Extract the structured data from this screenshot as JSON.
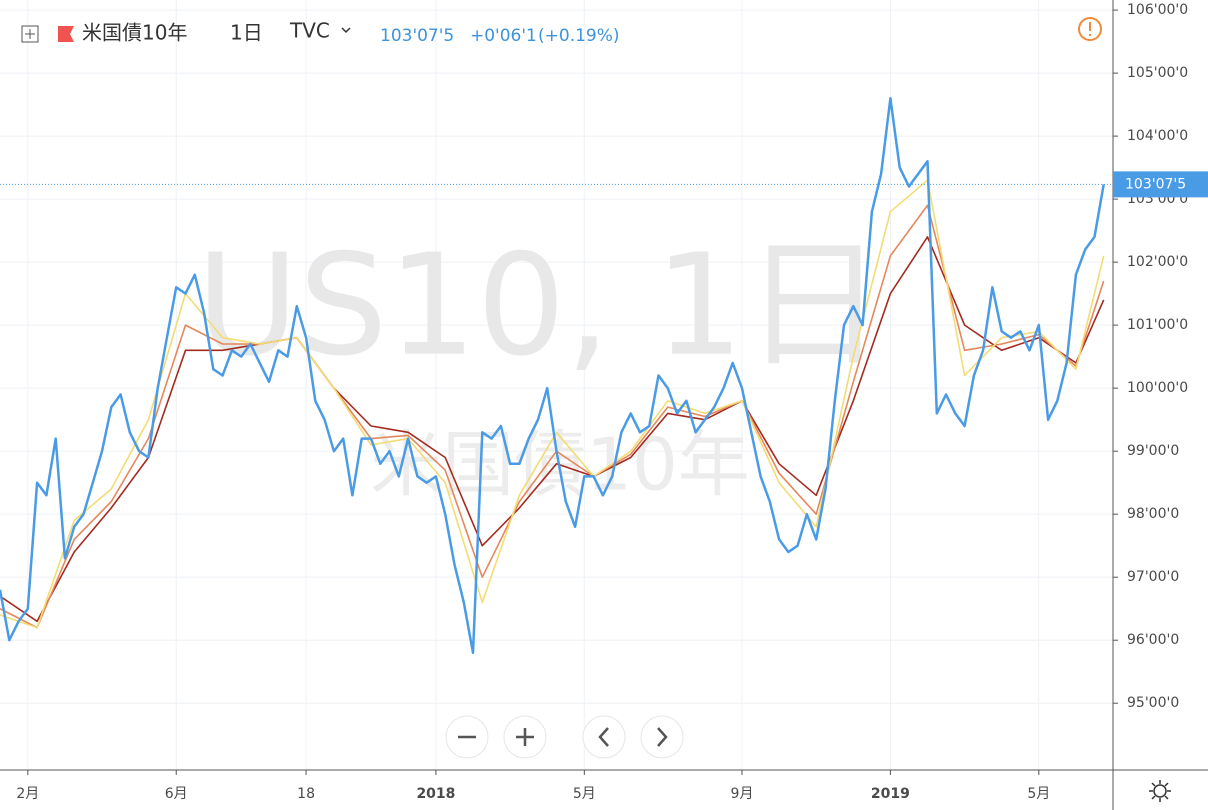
{
  "header": {
    "symbol": "米国債10年",
    "interval": "1日",
    "exchange": "TVC",
    "price": "103'07'5",
    "change": "+0'06'1",
    "change_pct": "(+0.19%)"
  },
  "watermark": {
    "main": "US10, 1日",
    "sub": "米国債10年"
  },
  "chart_data": {
    "type": "line",
    "categories": [
      null,
      null,
      null,
      "2月",
      null,
      null,
      null,
      null,
      null,
      null,
      null,
      null,
      null,
      null,
      null,
      null,
      null,
      null,
      null,
      "6月",
      null,
      null,
      null,
      null,
      null,
      null,
      null,
      null,
      null,
      null,
      null,
      null,
      null,
      "18",
      null,
      null,
      null,
      null,
      null,
      null,
      null,
      null,
      null,
      null,
      null,
      null,
      null,
      "2018",
      null,
      null,
      null,
      null,
      null,
      null,
      null,
      null,
      null,
      null,
      null,
      null,
      null,
      null,
      null,
      "5月",
      null,
      null,
      null,
      null,
      null,
      null,
      null,
      null,
      null,
      null,
      null,
      null,
      null,
      null,
      null,
      null,
      "9月",
      null,
      null,
      null,
      null,
      null,
      null,
      null,
      null,
      null,
      null,
      null,
      null,
      null,
      null,
      null,
      "2019",
      null,
      null,
      null,
      null,
      null,
      null,
      null,
      null,
      null,
      null,
      null,
      null,
      null,
      null,
      null,
      "5月",
      null,
      null,
      null,
      null,
      null,
      null,
      null
    ],
    "xlim": [
      0,
      120
    ],
    "series": [
      {
        "color": "#4a9be6",
        "values": [
          96.8,
          96.0,
          96.3,
          96.5,
          98.5,
          98.3,
          99.2,
          97.3,
          97.8,
          98.0,
          98.5,
          99.0,
          99.7,
          99.9,
          99.3,
          99.0,
          98.9,
          100.0,
          100.8,
          101.6,
          101.5,
          101.8,
          101.2,
          100.3,
          100.2,
          100.6,
          100.5,
          100.7,
          100.4,
          100.1,
          100.6,
          100.5,
          101.3,
          100.8,
          99.8,
          99.5,
          99.0,
          99.2,
          98.3,
          99.2,
          99.2,
          98.8,
          99.0,
          98.6,
          99.2,
          98.6,
          98.5,
          98.6,
          98.0,
          97.2,
          96.6,
          95.8,
          99.3,
          99.2,
          99.4,
          98.8,
          98.8,
          99.2,
          99.5,
          100.0,
          99.0,
          98.2,
          97.8,
          98.6,
          98.6,
          98.3,
          98.6,
          99.3,
          99.6,
          99.3,
          99.4,
          100.2,
          100.0,
          99.6,
          99.8,
          99.3,
          99.5,
          99.7,
          100.0,
          100.4,
          100.0,
          99.3,
          98.6,
          98.2,
          97.6,
          97.4,
          97.5,
          98.0,
          97.6,
          98.4,
          99.8,
          101.0,
          101.3,
          101.0,
          102.8,
          103.4,
          104.6,
          103.5,
          103.2,
          103.4,
          103.6,
          99.6,
          99.9,
          99.6,
          99.4,
          100.2,
          100.6,
          101.6,
          100.9,
          100.8,
          100.9,
          100.6,
          101.0,
          99.5,
          99.8,
          100.4,
          101.8,
          102.2,
          102.4,
          103.234
        ]
      },
      {
        "color": "#f3dc74",
        "x": [
          0,
          4,
          8,
          12,
          16,
          20,
          24,
          28,
          32,
          36,
          40,
          44,
          48,
          52,
          56,
          60,
          64,
          68,
          72,
          76,
          80,
          84,
          88,
          92,
          96,
          100,
          104,
          108,
          112,
          116,
          119
        ],
        "values": [
          96.4,
          96.2,
          97.9,
          98.4,
          99.5,
          101.5,
          100.8,
          100.7,
          100.8,
          100.0,
          99.1,
          99.2,
          98.5,
          96.6,
          98.3,
          99.3,
          98.6,
          99.0,
          99.8,
          99.6,
          99.8,
          98.5,
          97.8,
          100.5,
          102.8,
          103.3,
          100.2,
          100.8,
          100.9,
          100.3,
          102.1
        ]
      },
      {
        "color": "#e5875c",
        "x": [
          0,
          4,
          8,
          12,
          16,
          20,
          24,
          28,
          32,
          36,
          40,
          44,
          48,
          52,
          56,
          60,
          64,
          68,
          72,
          76,
          80,
          84,
          88,
          92,
          96,
          100,
          104,
          108,
          112,
          116,
          119
        ],
        "values": [
          96.5,
          96.2,
          97.6,
          98.2,
          99.2,
          101.0,
          100.7,
          100.7,
          100.8,
          100.0,
          99.2,
          99.25,
          98.7,
          97.0,
          98.2,
          99.0,
          98.6,
          98.95,
          99.7,
          99.55,
          99.8,
          98.65,
          98.0,
          100.1,
          102.1,
          102.9,
          100.6,
          100.7,
          100.85,
          100.35,
          101.7
        ]
      },
      {
        "color": "#a42a1f",
        "x": [
          0,
          4,
          8,
          12,
          16,
          20,
          24,
          28,
          32,
          36,
          40,
          44,
          48,
          52,
          56,
          60,
          64,
          68,
          72,
          76,
          80,
          84,
          88,
          92,
          96,
          100,
          104,
          108,
          112,
          116,
          119
        ],
        "values": [
          96.7,
          96.3,
          97.4,
          98.1,
          98.9,
          100.6,
          100.6,
          100.7,
          100.8,
          100.0,
          99.4,
          99.3,
          98.9,
          97.5,
          98.1,
          98.8,
          98.6,
          98.9,
          99.6,
          99.5,
          99.8,
          98.8,
          98.3,
          99.8,
          101.5,
          102.4,
          101.0,
          100.6,
          100.8,
          100.4,
          101.4
        ]
      }
    ],
    "ylim": [
      93.94,
      106.16
    ],
    "yticks": [
      {
        "value": 95,
        "label": "95'00'0"
      },
      {
        "value": 96,
        "label": "96'00'0"
      },
      {
        "value": 97,
        "label": "97'00'0"
      },
      {
        "value": 98,
        "label": "98'00'0"
      },
      {
        "value": 99,
        "label": "99'00'0"
      },
      {
        "value": 100,
        "label": "100'00'0"
      },
      {
        "value": 101,
        "label": "101'00'0"
      },
      {
        "value": 102,
        "label": "102'00'0"
      },
      {
        "value": 103,
        "label": "103'00'0"
      },
      {
        "value": 104,
        "label": "104'00'0"
      },
      {
        "value": 105,
        "label": "105'00'0"
      },
      {
        "value": 106,
        "label": "106'00'0"
      }
    ],
    "grid": true
  }
}
